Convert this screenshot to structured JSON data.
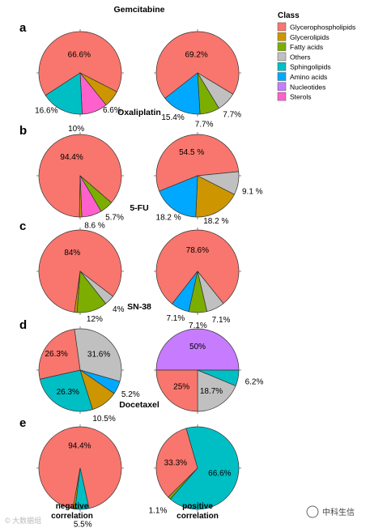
{
  "chart_data": {
    "type": "pie",
    "legend": {
      "title": "Class",
      "placement": "top-right",
      "items": [
        {
          "key": "glycerophospholipids",
          "label": "Glycerophospholipids",
          "color": "#F8766D"
        },
        {
          "key": "glycerolipids",
          "label": "Glycerolipids",
          "color": "#CD9600"
        },
        {
          "key": "fatty_acids",
          "label": "Fatty acids",
          "color": "#7CAE00"
        },
        {
          "key": "others",
          "label": "Others",
          "color": "#C0C0C0"
        },
        {
          "key": "sphingolipids",
          "label": "Sphingolipids",
          "color": "#00BFC4"
        },
        {
          "key": "amino_acids",
          "label": "Amino acids",
          "color": "#00A9FF"
        },
        {
          "key": "nucleotides",
          "label": "Nucleotides",
          "color": "#C77CFF"
        },
        {
          "key": "sterols",
          "label": "Sterols",
          "color": "#FF61CC"
        }
      ]
    },
    "columns": [
      "negative\ncorrelation",
      "positive\ncorrelation"
    ],
    "panels": [
      {
        "letter": "a",
        "title": "Gemcitabine",
        "pies": [
          {
            "slices": [
              {
                "class": "glycerophospholipids",
                "value": 66.6,
                "label": "66.6%"
              },
              {
                "class": "glycerolipids",
                "value": 6.6,
                "label": "6.6%"
              },
              {
                "class": "sterols",
                "value": 10,
                "label": "10%"
              },
              {
                "class": "sphingolipids",
                "value": 16.6,
                "label": "16.6%"
              }
            ]
          },
          {
            "slices": [
              {
                "class": "glycerophospholipids",
                "value": 69.2,
                "label": "69.2%"
              },
              {
                "class": "others",
                "value": 7.7,
                "label": "7.7%"
              },
              {
                "class": "fatty_acids",
                "value": 7.7,
                "label": "7.7%"
              },
              {
                "class": "amino_acids",
                "value": 15.4,
                "label": "15.4%"
              }
            ]
          }
        ]
      },
      {
        "letter": "b",
        "title": "Oxaliplatin",
        "pies": [
          {
            "slices": [
              {
                "class": "glycerophospholipids",
                "value": 94.4,
                "label": "94.4%"
              },
              {
                "class": "fatty_acids",
                "value": 5.7,
                "label": "5.7%"
              },
              {
                "class": "sterols",
                "value": 8.6,
                "label": "8.6 %"
              },
              {
                "class": "glycerolipids",
                "value": 1.0,
                "label": ""
              }
            ]
          },
          {
            "slices": [
              {
                "class": "glycerophospholipids",
                "value": 54.5,
                "label": "54.5 %"
              },
              {
                "class": "others",
                "value": 9.1,
                "label": "9.1 %"
              },
              {
                "class": "glycerolipids",
                "value": 18.2,
                "label": "18.2 %"
              },
              {
                "class": "amino_acids",
                "value": 18.2,
                "label": "18.2 %"
              }
            ]
          }
        ]
      },
      {
        "letter": "c",
        "title": "5-FU",
        "pies": [
          {
            "slices": [
              {
                "class": "glycerophospholipids",
                "value": 84,
                "label": "84%"
              },
              {
                "class": "others",
                "value": 4,
                "label": "4%"
              },
              {
                "class": "fatty_acids",
                "value": 12,
                "label": "12%"
              },
              {
                "class": "glycerolipids",
                "value": 1.0,
                "label": ""
              }
            ]
          },
          {
            "slices": [
              {
                "class": "glycerophospholipids",
                "value": 78.6,
                "label": "78.6%"
              },
              {
                "class": "others",
                "value": 7.1,
                "label": "7.1%"
              },
              {
                "class": "fatty_acids",
                "value": 7.1,
                "label": "7.1%"
              },
              {
                "class": "amino_acids",
                "value": 7.1,
                "label": "7.1%"
              }
            ]
          }
        ]
      },
      {
        "letter": "d",
        "title": "SN-38",
        "pies": [
          {
            "slices": [
              {
                "class": "others",
                "value": 31.6,
                "label": "31.6%"
              },
              {
                "class": "amino_acids",
                "value": 5.2,
                "label": "5.2%"
              },
              {
                "class": "glycerolipids",
                "value": 10.5,
                "label": "10.5%"
              },
              {
                "class": "sphingolipids",
                "value": 26.3,
                "label": "26.3%"
              },
              {
                "class": "glycerophospholipids",
                "value": 26.3,
                "label": "26.3%"
              }
            ]
          },
          {
            "slices": [
              {
                "class": "nucleotides",
                "value": 50,
                "label": "50%"
              },
              {
                "class": "sphingolipids",
                "value": 6.2,
                "label": "6.2%"
              },
              {
                "class": "others",
                "value": 18.7,
                "label": "18.7%"
              },
              {
                "class": "glycerophospholipids",
                "value": 25,
                "label": "25%"
              }
            ]
          }
        ]
      },
      {
        "letter": "e",
        "title": "Docetaxel",
        "pies": [
          {
            "slices": [
              {
                "class": "glycerophospholipids",
                "value": 94.4,
                "label": "94.4%"
              },
              {
                "class": "sphingolipids",
                "value": 5.5,
                "label": "5.5%"
              },
              {
                "class": "glycerolipids",
                "value": 0.8,
                "label": ""
              }
            ]
          },
          {
            "slices": [
              {
                "class": "sphingolipids",
                "value": 66.6,
                "label": "66.6%"
              },
              {
                "class": "fatty_acids",
                "value": 1.1,
                "label": "1.1%"
              },
              {
                "class": "glycerophospholipids",
                "value": 33.3,
                "label": "33.3%"
              }
            ]
          }
        ]
      }
    ]
  },
  "watermark_left": "© 大数据组",
  "watermark_right": "中科生信"
}
